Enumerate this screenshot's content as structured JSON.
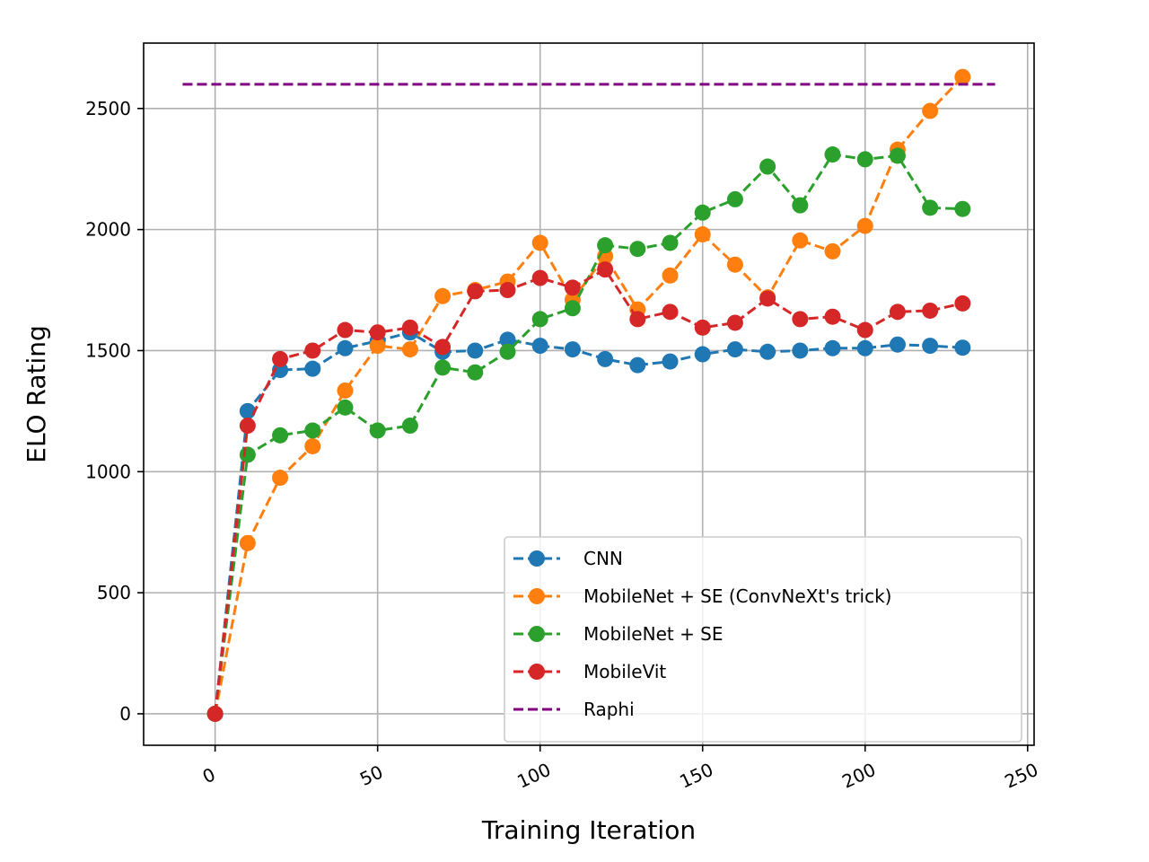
{
  "chart_data": {
    "type": "line",
    "xlabel": "Training Iteration",
    "ylabel": "ELO Rating",
    "xlim": [
      -22,
      252
    ],
    "ylim": [
      -130,
      2770
    ],
    "xticks": [
      0,
      50,
      100,
      150,
      200,
      250
    ],
    "yticks": [
      0,
      500,
      1000,
      1500,
      2000,
      2500
    ],
    "xtick_labels": [
      "0",
      "50",
      "100",
      "150",
      "200",
      "250"
    ],
    "ytick_labels": [
      "0",
      "500",
      "1000",
      "1500",
      "2000",
      "2500"
    ],
    "grid": true,
    "legend_position": "lower-right",
    "x": [
      0,
      10,
      20,
      30,
      40,
      50,
      60,
      70,
      80,
      90,
      100,
      110,
      120,
      130,
      140,
      150,
      160,
      170,
      180,
      190,
      200,
      210,
      220,
      230
    ],
    "series": [
      {
        "name": "CNN",
        "color": "#1f77b4",
        "style": "dashed-markers",
        "values": [
          0,
          1250,
          1420,
          1425,
          1510,
          1540,
          1575,
          1495,
          1500,
          1545,
          1520,
          1505,
          1465,
          1440,
          1455,
          1485,
          1505,
          1495,
          1500,
          1510,
          1510,
          1525,
          1520,
          1512
        ]
      },
      {
        "name": "MobileNet + SE (ConvNeXt's trick)",
        "color": "#ff7f0e",
        "style": "dashed-markers",
        "values": [
          0,
          705,
          975,
          1105,
          1335,
          1520,
          1505,
          1725,
          1750,
          1785,
          1945,
          1710,
          1890,
          1670,
          1810,
          1980,
          1855,
          1720,
          1955,
          1910,
          2015,
          2330,
          2490,
          2630
        ]
      },
      {
        "name": "MobileNet + SE",
        "color": "#2ca02c",
        "style": "dashed-markers",
        "values": [
          0,
          1070,
          1150,
          1170,
          1265,
          1170,
          1190,
          1430,
          1410,
          1495,
          1630,
          1675,
          1935,
          1920,
          1945,
          2070,
          2125,
          2260,
          2100,
          2310,
          2290,
          2305,
          2090,
          2085
        ]
      },
      {
        "name": "MobileVit",
        "color": "#d62728",
        "style": "dashed-markers",
        "values": [
          0,
          1190,
          1465,
          1500,
          1585,
          1575,
          1595,
          1515,
          1745,
          1750,
          1800,
          1760,
          1835,
          1630,
          1660,
          1595,
          1615,
          1715,
          1630,
          1640,
          1585,
          1660,
          1665,
          1695
        ]
      },
      {
        "name": "Raphi",
        "color": "#800080",
        "style": "dashed",
        "x": [
          -10,
          240
        ],
        "values": [
          2600,
          2600
        ]
      }
    ]
  }
}
